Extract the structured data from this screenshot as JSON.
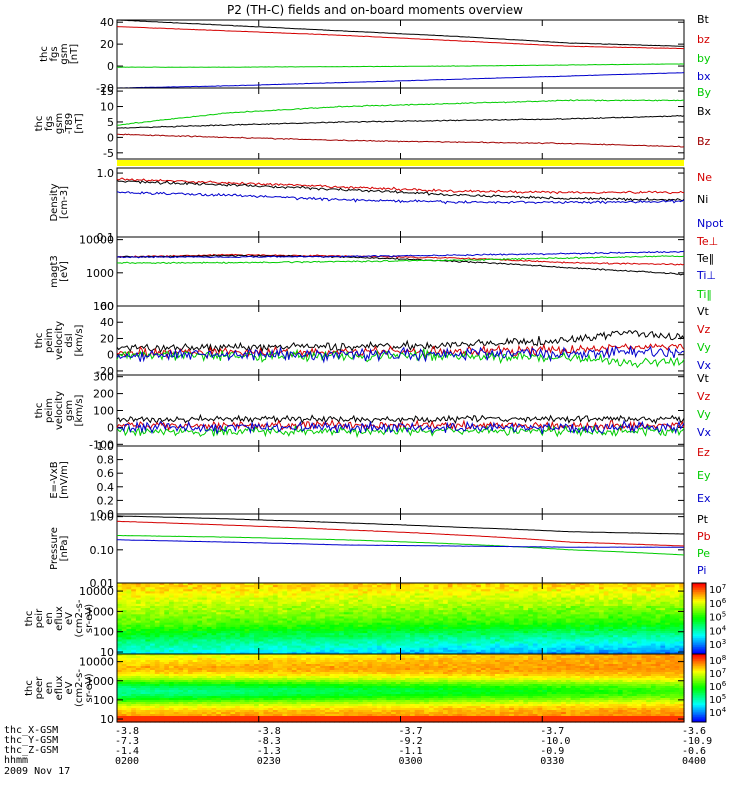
{
  "figure": {
    "title": "P2 (TH-C) fields and on-board moments overview"
  },
  "chart_data": [
    {
      "type": "line",
      "panel": "fgs",
      "ylabel": [
        "thc",
        "fgs",
        "gsm",
        "[nT]"
      ],
      "yrange": [
        -20,
        42
      ],
      "yticks": [
        "40",
        "20",
        "0",
        "-20"
      ],
      "ytick_values": [
        40,
        20,
        0,
        -20
      ],
      "series": [
        {
          "name": "Bt",
          "color": "#000000",
          "x": [
            0,
            0.2,
            0.4,
            0.6,
            0.8,
            1.0
          ],
          "y": [
            42,
            37,
            32,
            27,
            21,
            18
          ]
        },
        {
          "name": "bz",
          "color": "#d40000",
          "x": [
            0,
            0.2,
            0.4,
            0.6,
            0.8,
            1.0
          ],
          "y": [
            36,
            32,
            28,
            23,
            18,
            16
          ]
        },
        {
          "name": "by",
          "color": "#00cc00",
          "x": [
            0,
            0.2,
            0.4,
            0.6,
            0.8,
            1.0
          ],
          "y": [
            -1,
            -1,
            -0.5,
            0,
            1,
            2
          ]
        },
        {
          "name": "bx",
          "color": "#0000cc",
          "x": [
            0,
            0.2,
            0.4,
            0.6,
            0.8,
            1.0
          ],
          "y": [
            -20,
            -18,
            -15,
            -12,
            -9,
            -6
          ]
        }
      ]
    },
    {
      "type": "line",
      "panel": "gsm_t89",
      "ylabel": [
        "thc",
        "fgs",
        "gsm",
        "-T89",
        "[nT]"
      ],
      "yrange": [
        -7,
        16
      ],
      "yticks": [
        "15",
        "10",
        "5",
        "0",
        "-5"
      ],
      "ytick_values": [
        15,
        10,
        5,
        0,
        -5
      ],
      "series": [
        {
          "name": "By",
          "color": "#00cc00",
          "x": [
            0,
            0.2,
            0.4,
            0.6,
            0.8,
            1.0
          ],
          "y": [
            4,
            8,
            10,
            11,
            12,
            12
          ]
        },
        {
          "name": "Bx",
          "color": "#000000",
          "x": [
            0,
            0.2,
            0.4,
            0.6,
            0.8,
            1.0
          ],
          "y": [
            3,
            4,
            5,
            5.5,
            6,
            7
          ]
        },
        {
          "name": "Bz",
          "color": "#a00000",
          "x": [
            0,
            0.2,
            0.4,
            0.6,
            0.8,
            1.0
          ],
          "y": [
            1,
            0,
            -1,
            -1.5,
            -2,
            -3
          ]
        }
      ]
    },
    {
      "type": "line",
      "panel": "density",
      "ylabel": [
        "Density",
        "[cm-3]"
      ],
      "yscale": "log",
      "yrange": [
        0.1,
        1.2
      ],
      "yticks": [
        "1.0",
        "0.1"
      ],
      "ytick_values": [
        1.0,
        0.1
      ],
      "series": [
        {
          "name": "Ne",
          "color": "#d40000",
          "x": [
            0,
            0.2,
            0.4,
            0.6,
            0.8,
            1.0
          ],
          "y": [
            0.8,
            0.7,
            0.6,
            0.52,
            0.5,
            0.5
          ]
        },
        {
          "name": "Ni",
          "color": "#000000",
          "x": [
            0,
            0.2,
            0.4,
            0.6,
            0.8,
            1.0
          ],
          "y": [
            0.75,
            0.65,
            0.55,
            0.45,
            0.4,
            0.38
          ]
        },
        {
          "name": "Npot",
          "color": "#0000cc",
          "x": [
            0,
            0.2,
            0.4,
            0.6,
            0.8,
            1.0
          ],
          "y": [
            0.5,
            0.45,
            0.38,
            0.35,
            0.35,
            0.36
          ]
        }
      ]
    },
    {
      "type": "line",
      "panel": "temperature",
      "ylabel": [
        "magt3",
        "[eV]"
      ],
      "yscale": "log",
      "yrange": [
        100,
        12000
      ],
      "yticks": [
        "10000",
        "1000",
        "100"
      ],
      "ytick_values": [
        10000,
        1000,
        100
      ],
      "series": [
        {
          "name": "Te⊥",
          "color": "#d40000",
          "x": [
            0,
            0.2,
            0.4,
            0.6,
            0.8,
            1.0
          ],
          "y": [
            3000,
            3500,
            3200,
            2800,
            2000,
            1800
          ]
        },
        {
          "name": "Te‖",
          "color": "#000000",
          "x": [
            0,
            0.2,
            0.4,
            0.6,
            0.8,
            1.0
          ],
          "y": [
            3000,
            3300,
            3000,
            2200,
            1400,
            900
          ]
        },
        {
          "name": "Ti⊥",
          "color": "#0000cc",
          "x": [
            0,
            0.2,
            0.4,
            0.6,
            0.8,
            1.0
          ],
          "y": [
            3000,
            3000,
            3100,
            3400,
            3800,
            4300
          ]
        },
        {
          "name": "Ti‖",
          "color": "#00cc00",
          "x": [
            0,
            0.2,
            0.4,
            0.6,
            0.8,
            1.0
          ],
          "y": [
            2000,
            2000,
            2200,
            2400,
            2800,
            3200
          ]
        }
      ]
    },
    {
      "type": "line",
      "panel": "peim_velocity_dsl",
      "ylabel": [
        "thc",
        "peim",
        "velocity",
        "dsl",
        "[km/s]"
      ],
      "yrange": [
        -25,
        60
      ],
      "yticks": [
        "60",
        "40",
        "20",
        "0",
        "-20"
      ],
      "ytick_values": [
        60,
        40,
        20,
        0,
        -20
      ],
      "series": [
        {
          "name": "Vt",
          "color": "#000000",
          "x": [
            0,
            0.2,
            0.4,
            0.6,
            0.8,
            0.9,
            1.0
          ],
          "y": [
            8,
            9,
            10,
            12,
            18,
            28,
            20
          ]
        },
        {
          "name": "Vz",
          "color": "#d40000",
          "x": [
            0,
            0.2,
            0.4,
            0.6,
            0.8,
            0.9,
            1.0
          ],
          "y": [
            2,
            3,
            3,
            4,
            6,
            10,
            8
          ]
        },
        {
          "name": "Vy",
          "color": "#00cc00",
          "x": [
            0,
            0.2,
            0.4,
            0.6,
            0.8,
            0.9,
            1.0
          ],
          "y": [
            0,
            0,
            -1,
            -2,
            -4,
            -10,
            -8
          ]
        },
        {
          "name": "Vx",
          "color": "#0000cc",
          "x": [
            0,
            0.2,
            0.4,
            0.6,
            0.8,
            0.9,
            1.0
          ],
          "y": [
            0,
            1,
            0,
            1,
            2,
            3,
            2
          ]
        }
      ]
    },
    {
      "type": "line",
      "panel": "peim_velocity_gsm",
      "ylabel": [
        "thc",
        "peim",
        "velocity",
        "gsm",
        "[km/s]"
      ],
      "yrange": [
        -110,
        310
      ],
      "yticks": [
        "300",
        "200",
        "100",
        "0",
        "-100"
      ],
      "ytick_values": [
        300,
        200,
        100,
        0,
        -100
      ],
      "series": [
        {
          "name": "Vt",
          "color": "#000000",
          "x": [
            0,
            0.25,
            0.5,
            0.75,
            1.0
          ],
          "y": [
            45,
            50,
            48,
            52,
            50
          ]
        },
        {
          "name": "Vz",
          "color": "#d40000",
          "x": [
            0,
            0.25,
            0.5,
            0.75,
            1.0
          ],
          "y": [
            10,
            12,
            15,
            12,
            10
          ]
        },
        {
          "name": "Vy",
          "color": "#00cc00",
          "x": [
            0,
            0.25,
            0.5,
            0.75,
            1.0
          ],
          "y": [
            -20,
            -25,
            -20,
            -25,
            -20
          ]
        },
        {
          "name": "Vx",
          "color": "#0000cc",
          "x": [
            0,
            0.25,
            0.5,
            0.75,
            1.0
          ],
          "y": [
            0,
            2,
            0,
            -2,
            0
          ]
        }
      ]
    },
    {
      "type": "line",
      "panel": "efield",
      "ylabel": [
        "E=-VxB",
        "[mV/m]"
      ],
      "yrange": [
        0,
        1
      ],
      "yticks": [
        "1.0",
        "0.8",
        "0.6",
        "0.4",
        "0.2",
        "0.0"
      ],
      "ytick_values": [
        1.0,
        0.8,
        0.6,
        0.4,
        0.2,
        0.0
      ],
      "series": [
        {
          "name": "Ez",
          "color": "#d40000",
          "x": [],
          "y": []
        },
        {
          "name": "Ey",
          "color": "#00cc00",
          "x": [],
          "y": []
        },
        {
          "name": "Ex",
          "color": "#0000cc",
          "x": [],
          "y": []
        }
      ]
    },
    {
      "type": "line",
      "panel": "pressure",
      "ylabel": [
        "Pressure",
        "[nPa]"
      ],
      "yscale": "log",
      "yrange": [
        0.01,
        1.2
      ],
      "yticks": [
        "1.00",
        "0.10",
        "0.01"
      ],
      "ytick_values": [
        1.0,
        0.1,
        0.01
      ],
      "series": [
        {
          "name": "Pt",
          "color": "#000000",
          "x": [
            0,
            0.2,
            0.4,
            0.6,
            0.8,
            1.0
          ],
          "y": [
            1.05,
            0.85,
            0.65,
            0.48,
            0.35,
            0.3
          ]
        },
        {
          "name": "Pb",
          "color": "#d40000",
          "x": [
            0,
            0.2,
            0.4,
            0.6,
            0.8,
            1.0
          ],
          "y": [
            0.72,
            0.55,
            0.4,
            0.28,
            0.17,
            0.13
          ]
        },
        {
          "name": "Pe",
          "color": "#00cc00",
          "x": [
            0,
            0.2,
            0.4,
            0.6,
            0.8,
            1.0
          ],
          "y": [
            0.27,
            0.24,
            0.2,
            0.15,
            0.1,
            0.07
          ]
        },
        {
          "name": "Pi",
          "color": "#0000cc",
          "x": [
            0,
            0.2,
            0.4,
            0.6,
            0.8,
            1.0
          ],
          "y": [
            0.2,
            0.17,
            0.14,
            0.13,
            0.12,
            0.12
          ]
        }
      ]
    },
    {
      "type": "heatmap",
      "panel": "peir_spectrogram",
      "ylabel": [
        "thc",
        "peir",
        "en",
        "eflux",
        "eV",
        "(cm2-s-",
        "sr-eV)"
      ],
      "yscale": "log",
      "yrange": [
        8,
        25000
      ],
      "yticks": [
        "10000",
        "1000",
        "100",
        "10"
      ],
      "ytick_values": [
        10000,
        1000,
        100,
        10
      ],
      "colorbar": {
        "labels": [
          "10^7",
          "10^6",
          "10^5",
          "10^4",
          "10^3"
        ],
        "exponents": [
          7,
          6,
          5,
          4,
          3
        ]
      }
    },
    {
      "type": "heatmap",
      "panel": "peer_spectrogram",
      "ylabel": [
        "thc",
        "peer",
        "en",
        "eflux",
        "eV",
        "(cm2-s-",
        "sr-eV)"
      ],
      "yscale": "log",
      "yrange": [
        7,
        25000
      ],
      "yticks": [
        "10000",
        "1000",
        "100",
        "10"
      ],
      "ytick_values": [
        10000,
        1000,
        100,
        10
      ],
      "colorbar": {
        "labels": [
          "10^8",
          "10^7",
          "10^6",
          "10^5",
          "10^4"
        ],
        "exponents": [
          8,
          7,
          6,
          5,
          4
        ]
      }
    }
  ],
  "xaxis": {
    "rows": [
      {
        "label": "thc_X-GSM",
        "values": [
          "-3.8",
          "-3.8",
          "-3.7",
          "-3.7",
          "-3.6"
        ]
      },
      {
        "label": "thc_Y-GSM",
        "values": [
          "-7.3",
          "-8.3",
          "-9.2",
          "-10.0",
          "-10.9"
        ]
      },
      {
        "label": "thc_Z-GSM",
        "values": [
          "-1.4",
          "-1.3",
          "-1.1",
          "-0.9",
          "-0.6"
        ]
      },
      {
        "label": "hhmm",
        "values": [
          "0200",
          "0230",
          "0300",
          "0330",
          "0400"
        ]
      }
    ],
    "date": "2009 Nov 17"
  }
}
